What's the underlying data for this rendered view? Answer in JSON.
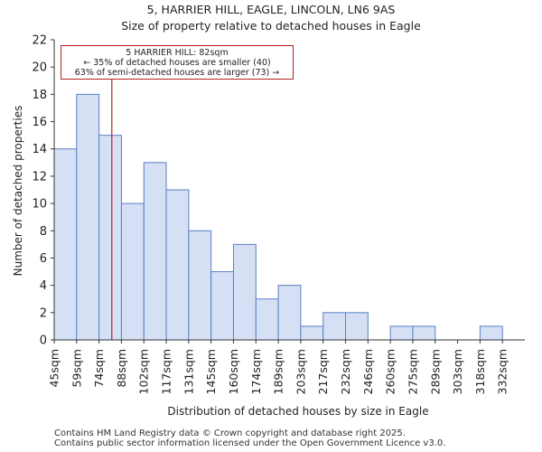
{
  "chart_data": {
    "type": "bar",
    "title": "5, HARRIER HILL, EAGLE, LINCOLN, LN6 9AS",
    "subtitle": "Size of property relative to detached houses in Eagle",
    "xlabel": "Distribution of detached houses by size in Eagle",
    "ylabel": "Number of detached properties",
    "ylim": [
      0,
      22
    ],
    "yticks": [
      0,
      2,
      4,
      6,
      8,
      10,
      12,
      14,
      16,
      18,
      20,
      22
    ],
    "categories": [
      "45sqm",
      "59sqm",
      "74sqm",
      "88sqm",
      "102sqm",
      "117sqm",
      "131sqm",
      "145sqm",
      "160sqm",
      "174sqm",
      "189sqm",
      "203sqm",
      "217sqm",
      "232sqm",
      "246sqm",
      "260sqm",
      "275sqm",
      "289sqm",
      "303sqm",
      "318sqm",
      "332sqm"
    ],
    "values": [
      14,
      18,
      15,
      10,
      13,
      11,
      8,
      5,
      7,
      3,
      4,
      1,
      2,
      2,
      0,
      1,
      1,
      0,
      0,
      1,
      0
    ],
    "marker_value_sqm": 82,
    "bar_color": "#d6e0f5",
    "bar_edge": "#5a7fc7",
    "marker_color": "#b22222",
    "annotation": {
      "line1": "5 HARRIER HILL: 82sqm",
      "line2": "← 35% of detached houses are smaller (40)",
      "line3": "63% of semi-detached houses are larger (73) →"
    }
  },
  "footer": {
    "line1": "Contains HM Land Registry data © Crown copyright and database right 2025.",
    "line2": "Contains public sector information licensed under the Open Government Licence v3.0."
  }
}
